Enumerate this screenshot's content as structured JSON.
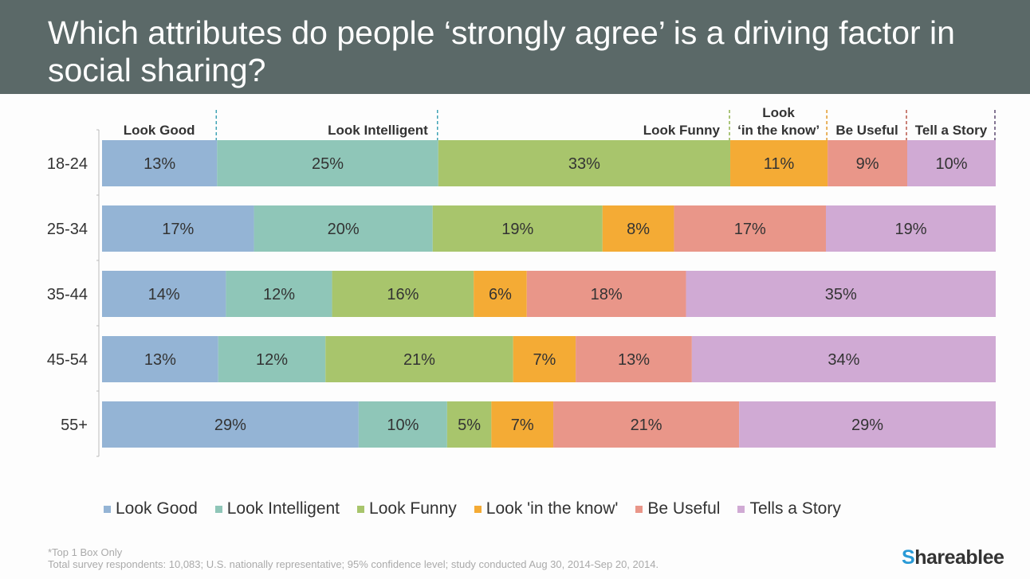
{
  "title": "Which attributes do people ‘strongly agree’ is a driving factor in social sharing?",
  "chart_data": {
    "type": "bar",
    "orientation": "horizontal",
    "stacked": true,
    "categories": [
      "18-24",
      "25-34",
      "35-44",
      "45-54",
      "55+"
    ],
    "header_labels": [
      "Look Good",
      "Look Intelligent",
      "Look Funny",
      "Look ‘in the know’",
      "Be Useful",
      "Tell a Story"
    ],
    "series": [
      {
        "name": "Look Good",
        "color": "#94b4d5",
        "values": [
          13,
          17,
          14,
          13,
          29
        ]
      },
      {
        "name": "Look Intelligent",
        "color": "#8fc6b8",
        "values": [
          25,
          20,
          12,
          12,
          10
        ]
      },
      {
        "name": "Look Funny",
        "color": "#a8c56c",
        "values": [
          33,
          19,
          16,
          21,
          5
        ]
      },
      {
        "name": "Look 'in the know'",
        "color": "#f4ab35",
        "values": [
          11,
          8,
          6,
          7,
          7
        ]
      },
      {
        "name": "Be Useful",
        "color": "#e99689",
        "values": [
          9,
          17,
          18,
          13,
          21
        ]
      },
      {
        "name": "Tells a Story",
        "color": "#d0aad4",
        "values": [
          10,
          19,
          35,
          34,
          29
        ]
      }
    ],
    "unit": "%",
    "legend_position": "bottom",
    "header_line_colors": [
      "#3fa3b5",
      "#3fa3b5",
      "#8fb24d",
      "#e39a2a",
      "#b9574a",
      "#5d4a70"
    ]
  },
  "footnote": "*Top 1 Box Only",
  "source": "Total survey respondents: 10,083; U.S. nationally representative; 95% confidence level; study conducted Aug 30, 2014-Sep 20, 2014.",
  "logo": {
    "initial": "S",
    "rest": "hareablee"
  }
}
